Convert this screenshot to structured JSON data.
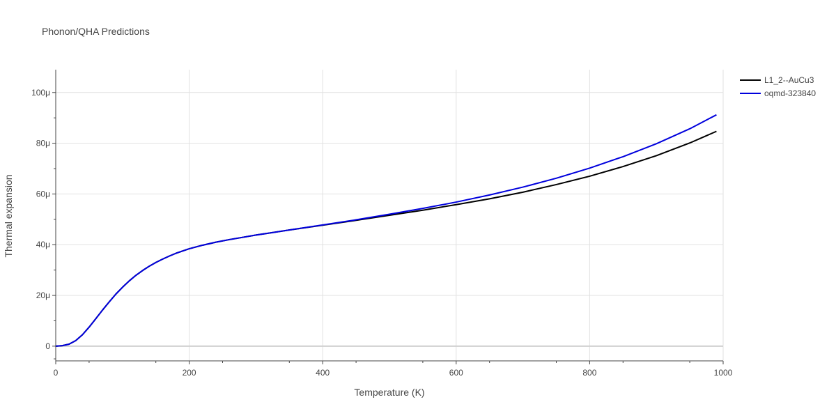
{
  "chart_data": {
    "type": "line",
    "title": "Phonon/QHA Predictions",
    "xlabel": "Temperature (K)",
    "ylabel": "Thermal expansion",
    "xlim": [
      0,
      1000
    ],
    "ylim": [
      -5.8e-06,
      0.000109
    ],
    "grid": true,
    "legend_position": "top-right",
    "xticks": [
      {
        "value": 0,
        "label": "0"
      },
      {
        "value": 200,
        "label": "200"
      },
      {
        "value": 400,
        "label": "400"
      },
      {
        "value": 600,
        "label": "600"
      },
      {
        "value": 800,
        "label": "800"
      },
      {
        "value": 1000,
        "label": "1000"
      }
    ],
    "yticks": [
      {
        "value": 0,
        "label": "0"
      },
      {
        "value": 2e-05,
        "label": "20μ"
      },
      {
        "value": 4e-05,
        "label": "40μ"
      },
      {
        "value": 6e-05,
        "label": "60μ"
      },
      {
        "value": 8e-05,
        "label": "80μ"
      },
      {
        "value": 0.0001,
        "label": "100μ"
      }
    ],
    "series": [
      {
        "name": "L1_2--AuCu3",
        "color": "#000000",
        "x": [
          0,
          10,
          20,
          30,
          40,
          50,
          60,
          70,
          80,
          90,
          100,
          110,
          120,
          130,
          140,
          150,
          160,
          170,
          180,
          190,
          200,
          220,
          240,
          260,
          280,
          300,
          350,
          400,
          450,
          500,
          550,
          600,
          650,
          700,
          750,
          800,
          850,
          900,
          950,
          990
        ],
        "y": [
          0,
          2e-07,
          8e-07,
          2.2e-06,
          4.5e-06,
          7.5e-06,
          1.08e-05,
          1.42e-05,
          1.74e-05,
          2.05e-05,
          2.32e-05,
          2.57e-05,
          2.79e-05,
          2.98e-05,
          3.15e-05,
          3.3e-05,
          3.43e-05,
          3.55e-05,
          3.66e-05,
          3.75e-05,
          3.84e-05,
          3.98e-05,
          4.1e-05,
          4.2e-05,
          4.29e-05,
          4.38e-05,
          4.58e-05,
          4.77e-05,
          4.96e-05,
          5.16e-05,
          5.36e-05,
          5.58e-05,
          5.81e-05,
          6.07e-05,
          6.37e-05,
          6.7e-05,
          7.08e-05,
          7.51e-05,
          8.01e-05,
          8.47e-05
        ]
      },
      {
        "name": "oqmd-323840",
        "color": "#0000dd",
        "x": [
          0,
          10,
          20,
          30,
          40,
          50,
          60,
          70,
          80,
          90,
          100,
          110,
          120,
          130,
          140,
          150,
          160,
          170,
          180,
          190,
          200,
          220,
          240,
          260,
          280,
          300,
          350,
          400,
          450,
          500,
          550,
          600,
          650,
          700,
          750,
          800,
          850,
          900,
          950,
          990
        ],
        "y": [
          0,
          2e-07,
          8e-07,
          2.2e-06,
          4.5e-06,
          7.5e-06,
          1.08e-05,
          1.42e-05,
          1.74e-05,
          2.05e-05,
          2.32e-05,
          2.57e-05,
          2.79e-05,
          2.98e-05,
          3.15e-05,
          3.3e-05,
          3.43e-05,
          3.55e-05,
          3.66e-05,
          3.75e-05,
          3.84e-05,
          3.98e-05,
          4.1e-05,
          4.2e-05,
          4.29e-05,
          4.38e-05,
          4.58e-05,
          4.78e-05,
          4.98e-05,
          5.2e-05,
          5.43e-05,
          5.68e-05,
          5.96e-05,
          6.27e-05,
          6.62e-05,
          7.02e-05,
          7.47e-05,
          7.98e-05,
          8.57e-05,
          9.12e-05
        ]
      }
    ]
  }
}
